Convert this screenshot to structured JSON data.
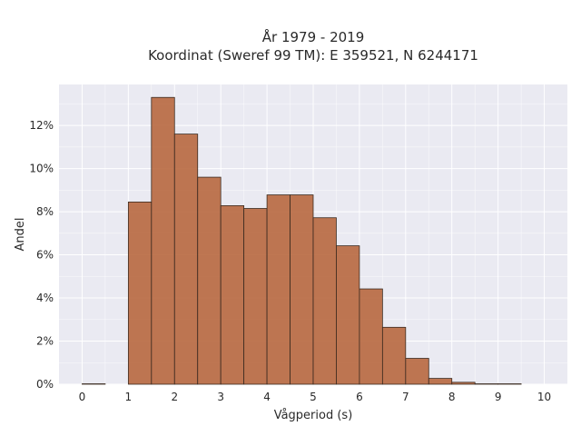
{
  "chart_data": {
    "type": "bar",
    "title": "År 1979 - 2019",
    "subtitle": "Koordinat (Sweref 99 TM): E 359521, N 6244171",
    "xlabel": "Vågperiod (s)",
    "ylabel": "Andel",
    "xlim": [
      -0.5,
      10.5
    ],
    "ylim": [
      0,
      13.9
    ],
    "bin_width": 0.5,
    "x_ticks": [
      "0",
      "1",
      "2",
      "3",
      "4",
      "5",
      "6",
      "7",
      "8",
      "9",
      "10"
    ],
    "x_tick_values": [
      0,
      1,
      2,
      3,
      4,
      5,
      6,
      7,
      8,
      9,
      10
    ],
    "y_ticks": [
      "0%",
      "2%",
      "4%",
      "6%",
      "8%",
      "10%",
      "12%"
    ],
    "y_tick_values": [
      0,
      2,
      4,
      6,
      8,
      10,
      12
    ],
    "bins": [
      {
        "start": 0.0,
        "value": 0.02
      },
      {
        "start": 1.0,
        "value": 8.45
      },
      {
        "start": 1.5,
        "value": 13.3
      },
      {
        "start": 2.0,
        "value": 11.6
      },
      {
        "start": 2.5,
        "value": 9.6
      },
      {
        "start": 3.0,
        "value": 8.28
      },
      {
        "start": 3.5,
        "value": 8.15
      },
      {
        "start": 4.0,
        "value": 8.78
      },
      {
        "start": 4.5,
        "value": 8.78
      },
      {
        "start": 5.0,
        "value": 7.72
      },
      {
        "start": 5.5,
        "value": 6.42
      },
      {
        "start": 6.0,
        "value": 4.42
      },
      {
        "start": 6.5,
        "value": 2.64
      },
      {
        "start": 7.0,
        "value": 1.2
      },
      {
        "start": 7.5,
        "value": 0.27
      },
      {
        "start": 8.0,
        "value": 0.09
      },
      {
        "start": 8.5,
        "value": 0.02
      },
      {
        "start": 9.0,
        "value": 0.02
      }
    ],
    "grid": true,
    "colors": {
      "bar": "#b8683f",
      "bar_edge": "#3a2a20",
      "plot_background": "#eaeaf2",
      "grid": "#ffffff"
    }
  }
}
